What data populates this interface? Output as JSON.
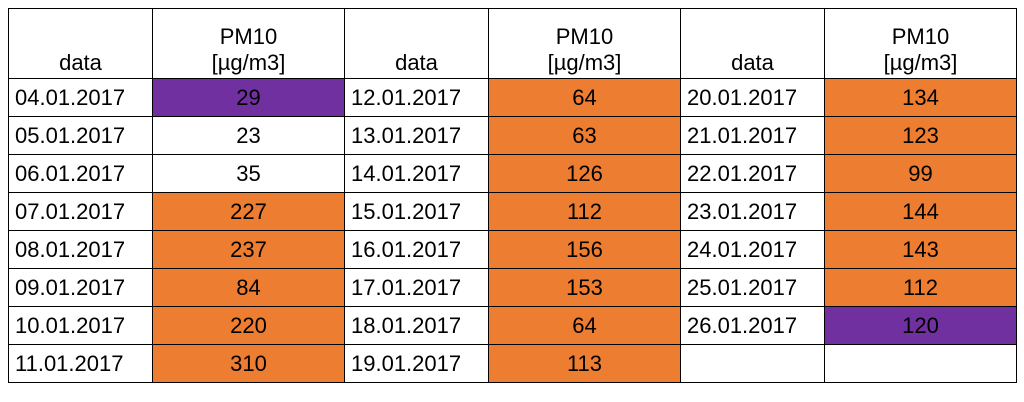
{
  "colors": {
    "orange": "#ed7d31",
    "purple": "#7030a0",
    "white": "#ffffff"
  },
  "headers": [
    {
      "date_label": "data",
      "value_label_1": "PM10",
      "value_label_2": "[µg/m3]"
    },
    {
      "date_label": "data",
      "value_label_1": "PM10",
      "value_label_2": "[µg/m3]"
    },
    {
      "date_label": "data",
      "value_label_1": "PM10",
      "value_label_2": "[µg/m3]"
    }
  ],
  "columns": [
    [
      {
        "date": "04.01.2017",
        "value": "29",
        "color": "purple"
      },
      {
        "date": "05.01.2017",
        "value": "23",
        "color": "white"
      },
      {
        "date": "06.01.2017",
        "value": "35",
        "color": "white"
      },
      {
        "date": "07.01.2017",
        "value": "227",
        "color": "orange"
      },
      {
        "date": "08.01.2017",
        "value": "237",
        "color": "orange"
      },
      {
        "date": "09.01.2017",
        "value": "84",
        "color": "orange"
      },
      {
        "date": "10.01.2017",
        "value": "220",
        "color": "orange"
      },
      {
        "date": "11.01.2017",
        "value": "310",
        "color": "orange"
      }
    ],
    [
      {
        "date": "12.01.2017",
        "value": "64",
        "color": "orange"
      },
      {
        "date": "13.01.2017",
        "value": "63",
        "color": "orange"
      },
      {
        "date": "14.01.2017",
        "value": "126",
        "color": "orange"
      },
      {
        "date": "15.01.2017",
        "value": "112",
        "color": "orange"
      },
      {
        "date": "16.01.2017",
        "value": "156",
        "color": "orange"
      },
      {
        "date": "17.01.2017",
        "value": "153",
        "color": "orange"
      },
      {
        "date": "18.01.2017",
        "value": "64",
        "color": "orange"
      },
      {
        "date": "19.01.2017",
        "value": "113",
        "color": "orange"
      }
    ],
    [
      {
        "date": "20.01.2017",
        "value": "134",
        "color": "orange"
      },
      {
        "date": "21.01.2017",
        "value": "123",
        "color": "orange"
      },
      {
        "date": "22.01.2017",
        "value": "99",
        "color": "orange"
      },
      {
        "date": "23.01.2017",
        "value": "144",
        "color": "orange"
      },
      {
        "date": "24.01.2017",
        "value": "143",
        "color": "orange"
      },
      {
        "date": "25.01.2017",
        "value": "112",
        "color": "orange"
      },
      {
        "date": "26.01.2017",
        "value": "120",
        "color": "purple"
      },
      {
        "date": "",
        "value": "",
        "color": "white"
      }
    ]
  ]
}
